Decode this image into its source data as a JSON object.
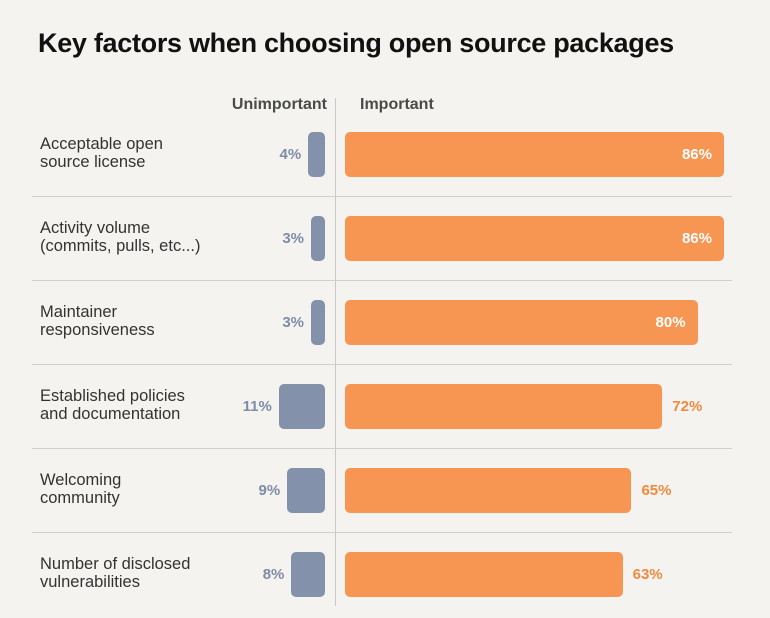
{
  "chart_data": {
    "type": "bar",
    "orientation": "horizontal-diverging",
    "title": "Key factors when choosing open source packages",
    "left_header": "Unimportant",
    "right_header": "Important",
    "categories": [
      [
        "Acceptable open",
        "source license"
      ],
      [
        "Activity volume",
        "(commits, pulls, etc...)"
      ],
      [
        "Maintainer",
        "responsiveness"
      ],
      [
        "Established policies",
        "and documentation"
      ],
      [
        "Welcoming",
        "community"
      ],
      [
        "Number of disclosed",
        "vulnerabilities"
      ]
    ],
    "series": [
      {
        "name": "Unimportant",
        "values": [
          4,
          3,
          3,
          11,
          9,
          8
        ],
        "labels": [
          "4%",
          "3%",
          "3%",
          "11%",
          "9%",
          "8%"
        ],
        "color": "#8491ab"
      },
      {
        "name": "Important",
        "values": [
          86,
          86,
          80,
          72,
          65,
          63
        ],
        "labels": [
          "86%",
          "86%",
          "80%",
          "72%",
          "65%",
          "63%"
        ],
        "color": "#f79552"
      }
    ]
  }
}
